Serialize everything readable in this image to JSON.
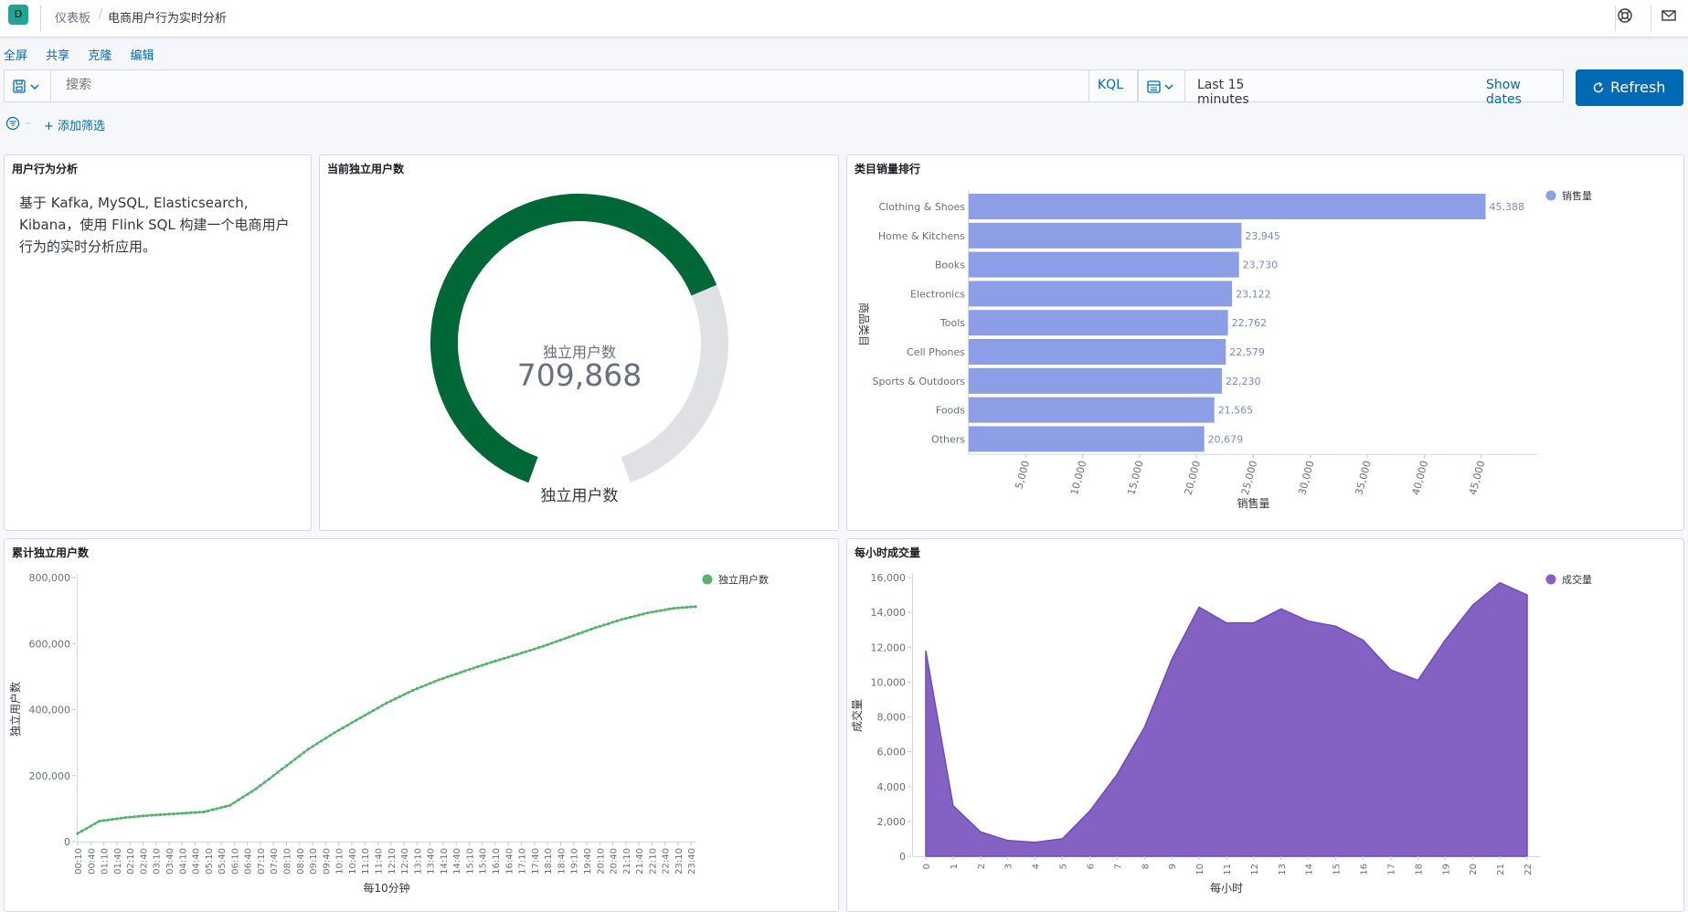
{
  "header": {
    "logo_letter": "D",
    "breadcrumb_root": "仪表板",
    "breadcrumb_current": "电商用户行为实时分析"
  },
  "menu": {
    "fullscreen": "全屏",
    "share": "共享",
    "clone": "克隆",
    "edit": "编辑"
  },
  "query": {
    "placeholder": "搜索",
    "language": "KQL",
    "time_range": "Last 15 minutes",
    "show_dates": "Show dates",
    "refresh_label": "Refresh"
  },
  "filter": {
    "add_label": "+ 添加筛选"
  },
  "panels": {
    "markdown": {
      "title": "用户行为分析",
      "text": "基于 Kafka, MySQL, Elasticsearch, Kibana，使用 Flink SQL 构建一个电商用户行为的实时分析应用。"
    },
    "gauge": {
      "title": "当前独立用户数",
      "label": "独立用户数",
      "value_text": "709,868",
      "caption": "独立用户数",
      "fill_fraction": 0.71,
      "fill_color": "#006837",
      "track_color": "#e0e1e5"
    },
    "category": {
      "title": "类目销量排行",
      "bar_color": "#8b9ee6"
    },
    "cumulative": {
      "title": "累计独立用户数",
      "line_color": "#54b36c"
    },
    "hourly": {
      "title": "每小时成交量",
      "area_color": "#8462c3",
      "area_stroke": "#6e4bb8"
    }
  },
  "chart_data": [
    {
      "id": "category",
      "type": "bar",
      "orientation": "horizontal",
      "title": "类目销量排行",
      "categories": [
        "Clothing & Shoes",
        "Home & Kitchens",
        "Books",
        "Electronics",
        "Tools",
        "Cell Phones",
        "Sports & Outdoors",
        "Foods",
        "Others"
      ],
      "values": [
        45388,
        23945,
        23730,
        23122,
        22762,
        22579,
        22230,
        21565,
        20679
      ],
      "value_labels": [
        "45,388",
        "23,945",
        "23,730",
        "23,122",
        "22,762",
        "22,579",
        "22,230",
        "21,565",
        "20,679"
      ],
      "xticks": [
        5000,
        10000,
        15000,
        20000,
        25000,
        30000,
        35000,
        40000,
        45000
      ],
      "xtick_labels": [
        "5,000",
        "10,000",
        "15,000",
        "20,000",
        "25,000",
        "30,000",
        "35,000",
        "40,000",
        "45,000"
      ],
      "xlim": [
        0,
        50000
      ],
      "xlabel": "销售量",
      "ylabel": "商品类目",
      "legend": [
        "销售量"
      ]
    },
    {
      "id": "cumulative",
      "type": "line",
      "title": "累计独立用户数",
      "xlabel": "每10分钟",
      "ylabel": "独立用户数",
      "legend": [
        "独立用户数"
      ],
      "ylim": [
        0,
        800000
      ],
      "yticks": [
        0,
        200000,
        400000,
        600000,
        800000
      ],
      "ytick_labels": [
        "0",
        "200,000",
        "400,000",
        "600,000",
        "800,000"
      ],
      "xtick_labels": [
        "00:10",
        "00:40",
        "01:10",
        "01:40",
        "02:10",
        "02:40",
        "03:10",
        "03:40",
        "04:10",
        "04:40",
        "05:10",
        "05:40",
        "06:10",
        "06:40",
        "07:10",
        "07:40",
        "08:10",
        "08:40",
        "09:10",
        "09:40",
        "10:10",
        "10:40",
        "11:10",
        "11:40",
        "12:10",
        "12:40",
        "13:10",
        "13:40",
        "14:10",
        "14:40",
        "15:10",
        "15:40",
        "16:10",
        "16:40",
        "17:10",
        "17:40",
        "18:10",
        "18:40",
        "19:10",
        "19:40",
        "20:10",
        "20:40",
        "21:10",
        "21:40",
        "22:10",
        "22:40",
        "23:10",
        "23:40"
      ],
      "key_hours": [
        0.17,
        1,
        2,
        3,
        4,
        5,
        6,
        7,
        8,
        9,
        10,
        11,
        12,
        13,
        14,
        15,
        16,
        17,
        18,
        19,
        20,
        21,
        22,
        23,
        23.83
      ],
      "key_values": [
        25000,
        62000,
        73000,
        80000,
        85000,
        90000,
        110000,
        160000,
        220000,
        280000,
        330000,
        375000,
        420000,
        458000,
        490000,
        517000,
        543000,
        567000,
        592000,
        620000,
        648000,
        673000,
        693000,
        707000,
        712000
      ]
    },
    {
      "id": "hourly",
      "type": "area",
      "title": "每小时成交量",
      "xlabel": "每小时",
      "ylabel": "成交量",
      "legend": [
        "成交量"
      ],
      "categories": [
        "0",
        "1",
        "2",
        "3",
        "4",
        "5",
        "6",
        "7",
        "8",
        "9",
        "10",
        "11",
        "12",
        "13",
        "14",
        "15",
        "16",
        "17",
        "18",
        "19",
        "20",
        "21",
        "22"
      ],
      "values": [
        11800,
        2900,
        1400,
        900,
        800,
        1000,
        2600,
        4700,
        7400,
        11300,
        14300,
        13400,
        13400,
        14200,
        13500,
        13200,
        12400,
        10700,
        10100,
        12400,
        14400,
        15700,
        15000
      ],
      "ylim": [
        0,
        16000
      ],
      "yticks": [
        0,
        2000,
        4000,
        6000,
        8000,
        10000,
        12000,
        14000,
        16000
      ],
      "ytick_labels": [
        "0",
        "2,000",
        "4,000",
        "6,000",
        "8,000",
        "10,000",
        "12,000",
        "14,000",
        "16,000"
      ]
    }
  ]
}
